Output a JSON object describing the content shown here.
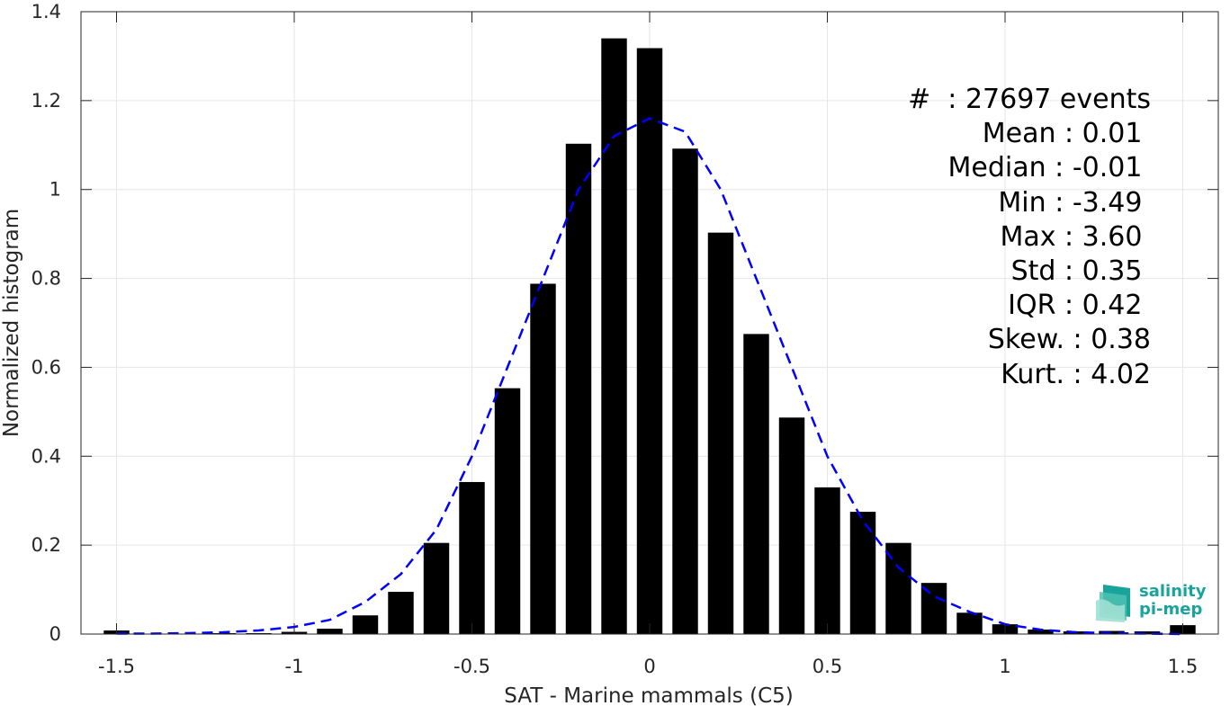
{
  "chart_data": {
    "type": "bar",
    "xlabel": "SAT - Marine mammals (C5)",
    "ylabel": "Normalized histogram",
    "xlim": [
      -1.6,
      1.6
    ],
    "ylim": [
      0,
      1.4
    ],
    "xticks": [
      -1.5,
      -1,
      -0.5,
      0,
      0.5,
      1,
      1.5
    ],
    "xtick_labels": [
      "-1.5",
      "-1",
      "-0.5",
      "0",
      "0.5",
      "1",
      "1.5"
    ],
    "yticks": [
      0,
      0.2,
      0.4,
      0.6,
      0.8,
      1,
      1.2,
      1.4
    ],
    "ytick_labels": [
      "0",
      "0.2",
      "0.4",
      "0.6",
      "0.8",
      "1",
      "1.2",
      "1.4"
    ],
    "grid": true,
    "bin_width": 0.1,
    "bar_color": "#000000",
    "x": [
      -1.5,
      -1.4,
      -1.3,
      -1.2,
      -1.1,
      -1.0,
      -0.9,
      -0.8,
      -0.7,
      -0.6,
      -0.5,
      -0.4,
      -0.3,
      -0.2,
      -0.1,
      0.0,
      0.1,
      0.2,
      0.3,
      0.4,
      0.5,
      0.6,
      0.7,
      0.8,
      0.9,
      1.0,
      1.1,
      1.2,
      1.3,
      1.4,
      1.5
    ],
    "values": [
      0.008,
      0.001,
      0.001,
      0.002,
      0.002,
      0.005,
      0.012,
      0.042,
      0.095,
      0.205,
      0.342,
      0.553,
      0.788,
      1.103,
      1.34,
      1.318,
      1.092,
      0.903,
      0.675,
      0.487,
      0.33,
      0.275,
      0.205,
      0.115,
      0.048,
      0.022,
      0.01,
      0.006,
      0.007,
      0.006,
      0.02
    ],
    "fit_curve": {
      "style": "dashed",
      "color": "#0000ff",
      "x": [
        -1.5,
        -1.4,
        -1.3,
        -1.2,
        -1.1,
        -1.0,
        -0.9,
        -0.8,
        -0.7,
        -0.6,
        -0.5,
        -0.4,
        -0.3,
        -0.2,
        -0.1,
        0.0,
        0.1,
        0.2,
        0.3,
        0.4,
        0.5,
        0.6,
        0.7,
        0.8,
        0.9,
        1.0,
        1.1,
        1.2,
        1.3,
        1.4,
        1.5
      ],
      "y": [
        0.001,
        0.001,
        0.002,
        0.004,
        0.008,
        0.016,
        0.032,
        0.072,
        0.135,
        0.235,
        0.4,
        0.6,
        0.8,
        1.0,
        1.12,
        1.16,
        1.13,
        1.0,
        0.8,
        0.6,
        0.4,
        0.255,
        0.15,
        0.085,
        0.05,
        0.022,
        0.01,
        0.004,
        0.002,
        0.001,
        0.0
      ]
    }
  },
  "stats": [
    "#  : 27697 events",
    "Mean : 0.01 ",
    "Median : -0.01 ",
    "Min : -3.49 ",
    "Max : 3.60 ",
    "Std : 0.35 ",
    "IQR : 0.42 ",
    "Skew. : 0.38",
    "Kurt. : 4.02"
  ],
  "logo": {
    "line1": "salinity",
    "line2": "pi-mep",
    "color": "#1aa39a"
  }
}
